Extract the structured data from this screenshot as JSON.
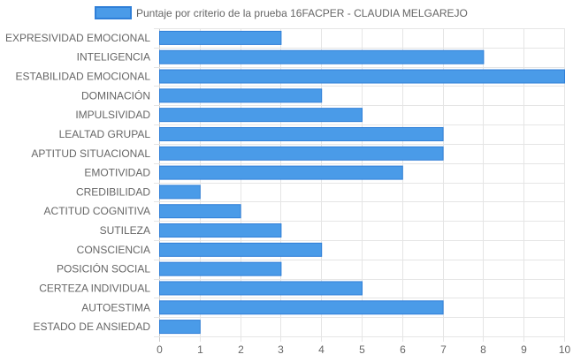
{
  "chart_data": {
    "type": "bar",
    "orientation": "horizontal",
    "categories": [
      "EXPRESIVIDAD EMOCIONAL",
      "INTELIGENCIA",
      "ESTABILIDAD EMOCIONAL",
      "DOMINACIÓN",
      "IMPULSIVIDAD",
      "LEALTAD GRUPAL",
      "APTITUD SITUACIONAL",
      "EMOTIVIDAD",
      "CREDIBILIDAD",
      "ACTITUD COGNITIVA",
      "SUTILEZA",
      "CONSCIENCIA",
      "POSICIÓN SOCIAL",
      "CERTEZA INDIVIDUAL",
      "AUTOESTIMA",
      "ESTADO DE ANSIEDAD"
    ],
    "series": [
      {
        "name": "Puntaje por criterio de la prueba 16FACPER - CLAUDIA MELGAREJO",
        "values": [
          3,
          8,
          10,
          4,
          5,
          7,
          7,
          6,
          1,
          2,
          3,
          4,
          3,
          5,
          7,
          1
        ]
      }
    ],
    "xlim": [
      0,
      10
    ],
    "xticks": [
      "0",
      "1",
      "2",
      "3",
      "4",
      "5",
      "6",
      "7",
      "8",
      "9",
      "10"
    ],
    "grid": true,
    "legend_position": "top",
    "colors": {
      "bar_fill": "#4a9be8",
      "bar_stroke": "#2f7fd8",
      "grid": "#e5e5e5",
      "axis_text": "#666666"
    }
  }
}
